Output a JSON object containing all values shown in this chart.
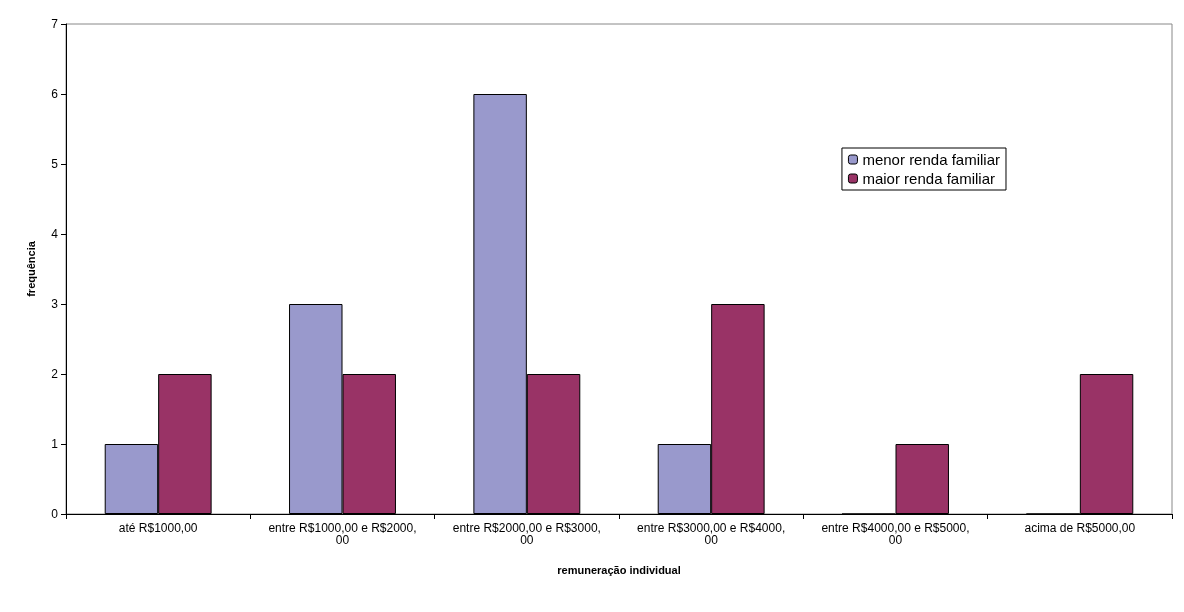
{
  "chart_data": {
    "type": "bar",
    "xlabel": "remuneração individual",
    "ylabel": "frequência",
    "categories": [
      "até R$1000,00",
      "entre R$1000,00 e R$2000,00",
      "entre R$2000,00 e R$3000,00",
      "entre R$3000,00 e R$4000,00",
      "entre R$4000,00 e R$5000,00",
      "acima de R$5000,00"
    ],
    "series": [
      {
        "name": "menor renda familiar",
        "color": "#9999cc",
        "values": [
          1,
          3,
          6,
          1,
          0,
          0
        ]
      },
      {
        "name": "maior renda familiar",
        "color": "#993366",
        "values": [
          2,
          2,
          2,
          3,
          1,
          2
        ]
      }
    ],
    "ylim": [
      0,
      7
    ],
    "yticks": [
      0,
      1,
      2,
      3,
      4,
      5,
      6,
      7
    ],
    "grid": false,
    "legend": "top right"
  }
}
